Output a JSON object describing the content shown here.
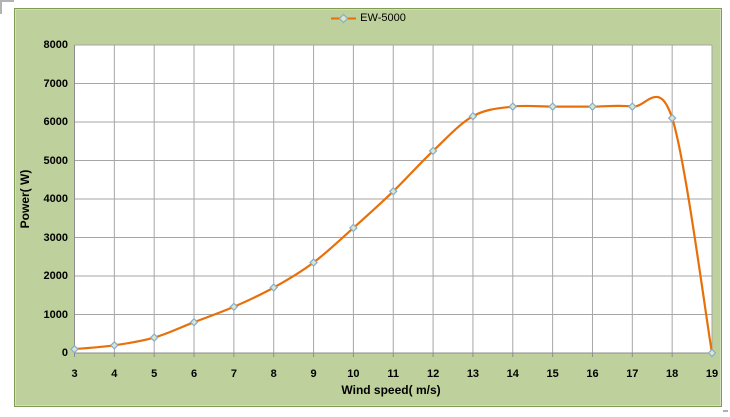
{
  "chart_data": {
    "type": "line",
    "title": "",
    "categories": [
      3,
      4,
      5,
      6,
      7,
      8,
      9,
      10,
      11,
      12,
      13,
      14,
      15,
      16,
      17,
      18,
      19
    ],
    "series": [
      {
        "name": "EW-5000",
        "values": [
          100,
          200,
          400,
          800,
          1200,
          1700,
          2350,
          3250,
          4200,
          5250,
          6150,
          6400,
          6400,
          6400,
          6400,
          6100,
          0
        ],
        "color": "#e8700a",
        "marker": "diamond",
        "marker_fill": "#dce6c6",
        "marker_stroke": "#84acd0",
        "smooth": true
      }
    ],
    "xlabel": "Wind speed( m/s)",
    "ylabel": "Power( W)",
    "ylim": [
      0,
      8000
    ],
    "ytick_step": 1000,
    "xticks": [
      "3",
      "4",
      "5",
      "6",
      "7",
      "8",
      "9",
      "10",
      "11",
      "12",
      "13",
      "14",
      "15",
      "16",
      "17",
      "18",
      "19"
    ],
    "yticks": [
      "0",
      "1000",
      "2000",
      "3000",
      "4000",
      "5000",
      "6000",
      "7000",
      "8000"
    ],
    "grid": true,
    "legend_position": "top-center",
    "colors": {
      "chart_background": "#bed19c",
      "chart_border": "#7f9c51",
      "plot_background": "#ffffff",
      "gridline": "#a6a6a6",
      "axis_line": "#8c8c8c",
      "text": "#000000"
    }
  }
}
